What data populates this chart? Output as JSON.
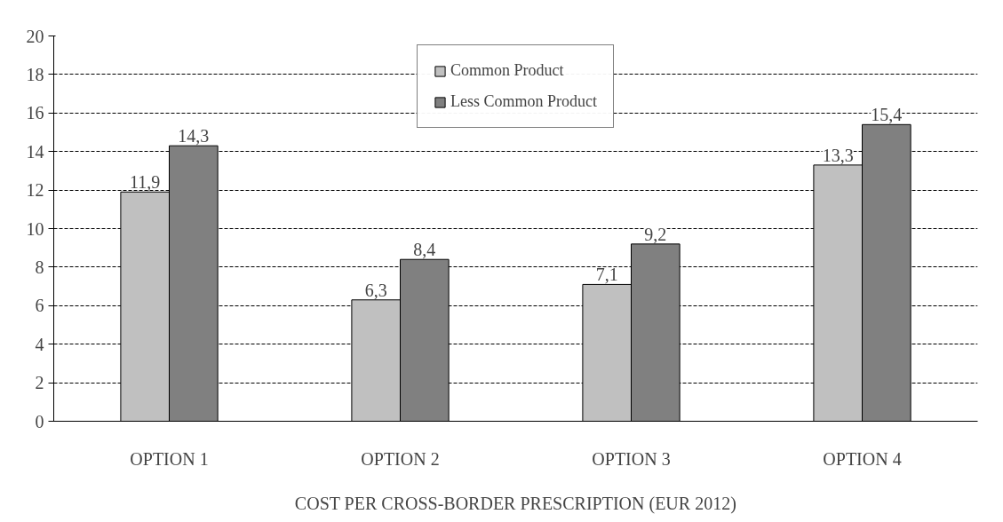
{
  "chart_data": {
    "type": "bar",
    "categories": [
      "OPTION 1",
      "OPTION 2",
      "OPTION 3",
      "OPTION 4"
    ],
    "xlabel": "COST PER CROSS-BORDER PRESCRIPTION (EUR 2012)",
    "series": [
      {
        "name": "Common Product",
        "color": "#c0c0c0",
        "values": [
          11.9,
          6.3,
          7.1,
          13.3
        ],
        "value_labels": [
          "11,9",
          "6,3",
          "7,1",
          "13,3"
        ]
      },
      {
        "name": "Less Common Product",
        "color": "#808080",
        "values": [
          14.3,
          8.4,
          9.2,
          15.4
        ],
        "value_labels": [
          "14,3",
          "8,4",
          "9,2",
          "15,4"
        ]
      }
    ],
    "ylim": [
      0,
      20
    ],
    "yticks": [
      0,
      2,
      4,
      6,
      8,
      10,
      12,
      14,
      16,
      18,
      20
    ],
    "grid": "y",
    "legend": "top"
  }
}
